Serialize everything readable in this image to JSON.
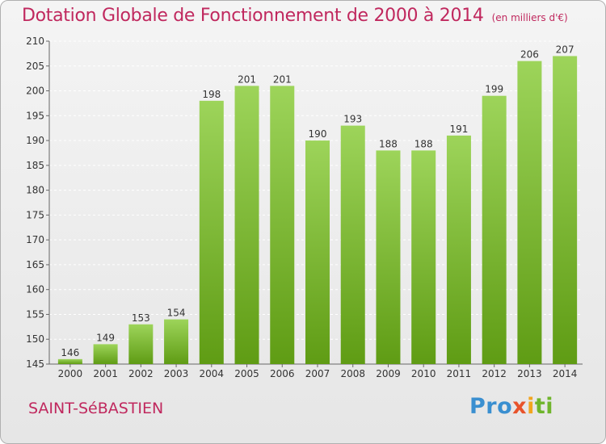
{
  "header": {
    "title": "Dotation Globale de Fonctionnement de 2000 à 2014",
    "subtitle": "(en milliers d'€)"
  },
  "footer": {
    "place": "SAINT-SéBASTIEN",
    "logo": {
      "p1": "Pro",
      "p2": "x",
      "p3": "i",
      "p4": "ti"
    }
  },
  "colors": {
    "title": "#c0285e",
    "bar_top": "#9dd45a",
    "bar_bottom": "#5f9c14",
    "grid": "#ffffff"
  },
  "chart_data": {
    "type": "bar",
    "title": "Dotation Globale de Fonctionnement de 2000 à 2014",
    "subtitle": "(en milliers d'€)",
    "xlabel": "",
    "ylabel": "",
    "categories": [
      "2000",
      "2001",
      "2002",
      "2003",
      "2004",
      "2005",
      "2006",
      "2007",
      "2008",
      "2009",
      "2010",
      "2011",
      "2012",
      "2013",
      "2014"
    ],
    "values": [
      146,
      149,
      153,
      154,
      198,
      201,
      201,
      190,
      193,
      188,
      188,
      191,
      199,
      206,
      207
    ],
    "ylim": [
      145,
      210
    ],
    "yticks": [
      145,
      150,
      155,
      160,
      165,
      170,
      175,
      180,
      185,
      190,
      195,
      200,
      205,
      210
    ],
    "grid": true,
    "data_labels": true
  }
}
